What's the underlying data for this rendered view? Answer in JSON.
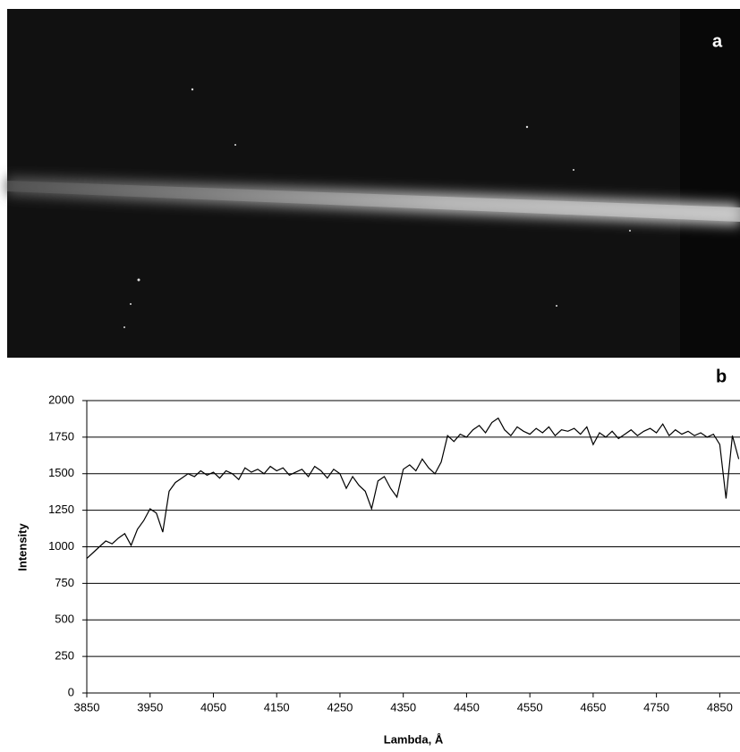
{
  "panel_a": {
    "label": "a"
  },
  "chart_data": {
    "type": "line",
    "panel_label": "b",
    "x_label": "Lambda, Å",
    "y_label": "Intensity",
    "x": [
      3850,
      3860,
      3870,
      3880,
      3890,
      3900,
      3910,
      3920,
      3930,
      3940,
      3950,
      3960,
      3970,
      3980,
      3990,
      4000,
      4010,
      4020,
      4030,
      4040,
      4050,
      4060,
      4070,
      4080,
      4090,
      4100,
      4110,
      4120,
      4130,
      4140,
      4150,
      4160,
      4170,
      4180,
      4190,
      4200,
      4210,
      4220,
      4230,
      4240,
      4250,
      4260,
      4270,
      4280,
      4290,
      4300,
      4310,
      4320,
      4330,
      4340,
      4350,
      4360,
      4370,
      4380,
      4390,
      4400,
      4410,
      4420,
      4430,
      4440,
      4450,
      4460,
      4470,
      4480,
      4490,
      4500,
      4510,
      4520,
      4530,
      4540,
      4550,
      4560,
      4570,
      4580,
      4590,
      4600,
      4610,
      4620,
      4630,
      4640,
      4650,
      4660,
      4670,
      4680,
      4690,
      4700,
      4710,
      4720,
      4730,
      4740,
      4750,
      4760,
      4770,
      4780,
      4790,
      4800,
      4810,
      4820,
      4830,
      4840,
      4850,
      4860,
      4870,
      4880
    ],
    "values": [
      920,
      960,
      1000,
      1040,
      1020,
      1060,
      1090,
      1010,
      1120,
      1180,
      1260,
      1230,
      1100,
      1380,
      1440,
      1470,
      1500,
      1480,
      1520,
      1490,
      1510,
      1470,
      1520,
      1500,
      1460,
      1540,
      1510,
      1530,
      1500,
      1550,
      1520,
      1540,
      1490,
      1510,
      1530,
      1480,
      1550,
      1520,
      1470,
      1530,
      1500,
      1400,
      1480,
      1420,
      1380,
      1260,
      1450,
      1480,
      1400,
      1340,
      1530,
      1560,
      1520,
      1600,
      1540,
      1500,
      1580,
      1760,
      1720,
      1770,
      1750,
      1800,
      1830,
      1780,
      1850,
      1880,
      1800,
      1760,
      1820,
      1790,
      1770,
      1810,
      1780,
      1820,
      1760,
      1800,
      1790,
      1810,
      1770,
      1820,
      1700,
      1780,
      1750,
      1790,
      1740,
      1770,
      1800,
      1760,
      1790,
      1810,
      1780,
      1840,
      1760,
      1800,
      1770,
      1790,
      1760,
      1780,
      1750,
      1770,
      1700,
      1330,
      1760,
      1600
    ],
    "color": "#000000",
    "xlim": [
      3850,
      4882
    ],
    "xticks": [
      3850,
      3950,
      4050,
      4150,
      4250,
      4350,
      4450,
      4550,
      4650,
      4750,
      4850
    ],
    "ylim": [
      0,
      2000
    ],
    "yticks": [
      0,
      250,
      500,
      750,
      1000,
      1250,
      1500,
      1750,
      2000
    ],
    "grid": true
  }
}
